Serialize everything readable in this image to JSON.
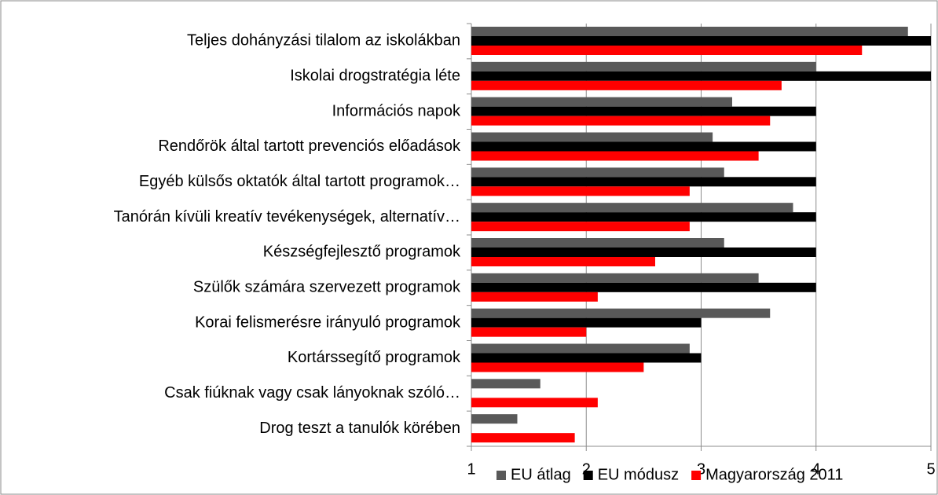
{
  "chart_data": {
    "type": "barh",
    "categories": [
      "Teljes dohányzási tilalom az iskolákban",
      "Iskolai drogstratégia léte",
      "Információs napok",
      "Rendőrök által tartott prevenciós előadások",
      "Egyéb külsős oktatók által tartott programok…",
      "Tanórán kívüli kreatív tevékenységek, alternatív…",
      "Készségfejlesztő programok",
      "Szülők számára szervezett programok",
      "Korai felismerésre irányuló programok",
      "Kortárssegítő programok",
      "Csak fiúknak vagy csak lányoknak szóló…",
      "Drog teszt a tanulók körében"
    ],
    "series": [
      {
        "name": "EU átlag",
        "color": "#595959",
        "values": [
          4.8,
          4.0,
          3.27,
          3.1,
          3.2,
          3.8,
          3.2,
          3.5,
          3.6,
          2.9,
          1.6,
          1.4
        ]
      },
      {
        "name": "EU módusz",
        "color": "#000000",
        "values": [
          5,
          5,
          4,
          4,
          4,
          4,
          4,
          4,
          3,
          3,
          null,
          null
        ]
      },
      {
        "name": "Magyarország 2011",
        "color": "#ff0000",
        "values": [
          4.4,
          3.7,
          3.6,
          3.5,
          2.9,
          2.9,
          2.6,
          2.1,
          2.0,
          2.5,
          2.1,
          1.9
        ]
      }
    ],
    "xlim": [
      1,
      5
    ],
    "xticks": [
      1,
      2,
      3,
      4,
      5
    ],
    "grid": true,
    "legend": "bottom"
  }
}
